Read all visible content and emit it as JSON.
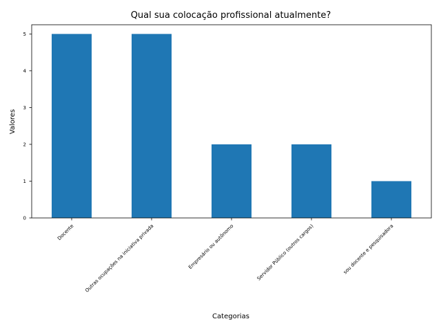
{
  "chart_data": {
    "type": "bar",
    "title": "Qual sua colocação profissional atualmente?",
    "xlabel": "Categorias",
    "ylabel": "Valores",
    "categories": [
      "Docente",
      "Outras ocupações na iniciativa privada",
      "Empresário ou autônomo",
      "Servidor Público (outros cargos)",
      "sou docente e pesquisadora"
    ],
    "values": [
      5,
      5,
      2,
      2,
      1
    ],
    "ylim": [
      0,
      5.25
    ],
    "yticks": [
      0,
      1,
      2,
      3,
      4,
      5
    ],
    "bar_color": "#1f77b4",
    "grid": false,
    "legend": "none"
  }
}
